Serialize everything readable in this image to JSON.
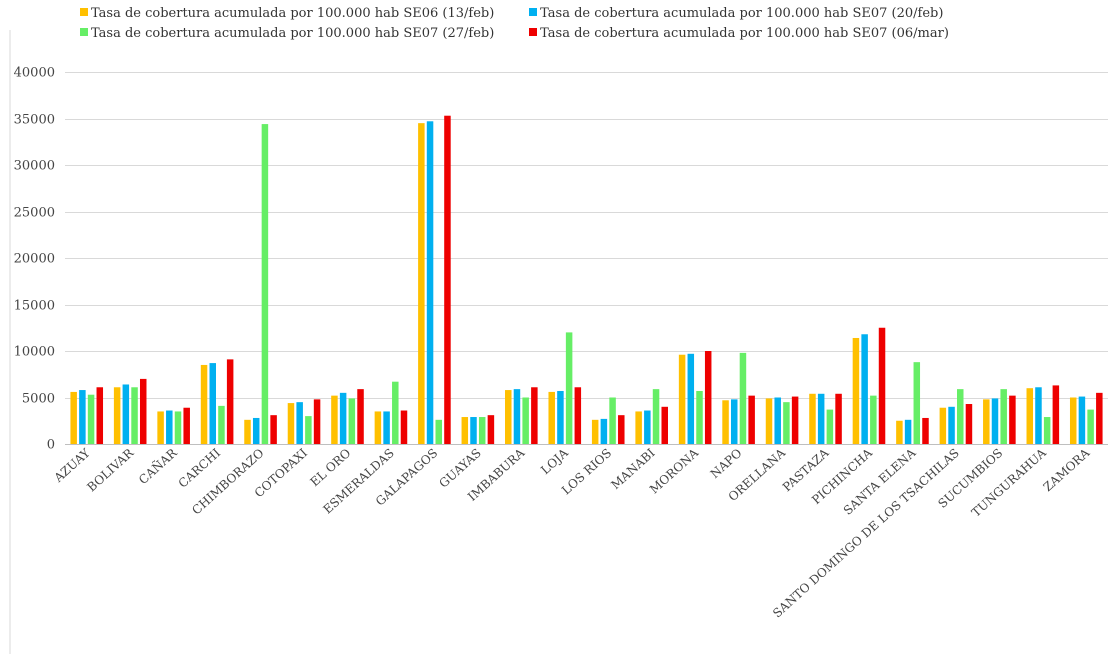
{
  "chart_data": {
    "type": "bar",
    "title": "",
    "xlabel": "",
    "ylabel": "",
    "ylim": [
      0,
      40000
    ],
    "yticks": [
      0,
      5000,
      10000,
      15000,
      20000,
      25000,
      30000,
      35000,
      40000
    ],
    "grid": true,
    "legend_position": "top",
    "categories": [
      "AZUAY",
      "BOLIVAR",
      "CAÑAR",
      "CARCHI",
      "CHIMBORAZO",
      "COTOPAXI",
      "EL ORO",
      "ESMERALDAS",
      "GALAPAGOS",
      "GUAYAS",
      "IMBABURA",
      "LOJA",
      "LOS RIOS",
      "MANABI",
      "MORONA",
      "NAPO",
      "ORELLANA",
      "PASTAZA",
      "PICHINCHA",
      "SANTA ELENA",
      "SANTO DOMINGO DE LOS TSACHILAS",
      "SUCUMBIOS",
      "TUNGURAHUA",
      "ZAMORA"
    ],
    "series": [
      {
        "name": "Tasa de cobertura acumulada por 100.000 hab SE06 (13/feb)",
        "color": "#FFC000",
        "values": [
          5600,
          6100,
          3500,
          8500,
          2600,
          4400,
          5200,
          3500,
          34500,
          2900,
          5800,
          5600,
          2600,
          3500,
          9600,
          4700,
          4900,
          5400,
          11400,
          2500,
          3900,
          4800,
          6000,
          5000
        ]
      },
      {
        "name": "Tasa de cobertura acumulada por 100.000 hab SE07 (20/feb)",
        "color": "#00B0F0",
        "values": [
          5800,
          6400,
          3600,
          8700,
          2800,
          4500,
          5500,
          3500,
          34700,
          2900,
          5900,
          5700,
          2700,
          3600,
          9700,
          4800,
          5000,
          5400,
          11800,
          2600,
          4000,
          4900,
          6100,
          5100
        ]
      },
      {
        "name": "Tasa de cobertura acumulada por 100.000 hab SE07 (27/feb)",
        "color": "#66EE66",
        "values": [
          5300,
          6100,
          3500,
          4100,
          34400,
          3000,
          4900,
          6700,
          2600,
          2900,
          5000,
          12000,
          5000,
          5900,
          5700,
          9800,
          4500,
          3700,
          5200,
          8800,
          5900,
          5900,
          2900,
          3700
        ]
      },
      {
        "name": "Tasa de cobertura acumulada por 100.000 hab SE07 (06/mar)",
        "color": "#EE0000",
        "values": [
          6100,
          7000,
          3900,
          9100,
          3100,
          4800,
          5900,
          3600,
          35300,
          3100,
          6100,
          6100,
          3100,
          4000,
          10000,
          5200,
          5100,
          5400,
          12500,
          2800,
          4300,
          5200,
          6300,
          5500
        ]
      }
    ]
  }
}
